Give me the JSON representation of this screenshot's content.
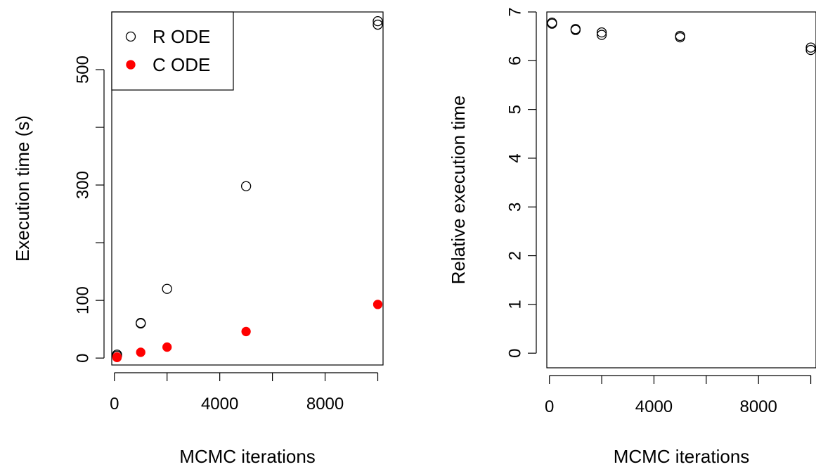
{
  "chart_data": [
    {
      "type": "scatter",
      "xlabel": "MCMC iterations",
      "ylabel": "Execution time (s)",
      "xlim": [
        -100,
        10200
      ],
      "ylim": [
        -12,
        600
      ],
      "x_ticks": [
        0,
        2000,
        4000,
        6000,
        8000,
        10000
      ],
      "x_tick_labels": [
        "0",
        "",
        "4000",
        "",
        "8000",
        ""
      ],
      "y_ticks": [
        0,
        100,
        200,
        300,
        400,
        500
      ],
      "y_tick_labels": [
        "0",
        "100",
        "",
        "300",
        "",
        "500"
      ],
      "grid": false,
      "legend": {
        "position": "top-left",
        "entries": [
          "R ODE",
          "C ODE"
        ]
      },
      "series": [
        {
          "name": "R ODE",
          "marker": "open-circle",
          "color": "#000000",
          "points": [
            [
              100,
              4
            ],
            [
              100,
              6
            ],
            [
              1000,
              61
            ],
            [
              1000,
              60
            ],
            [
              2000,
              120
            ],
            [
              5000,
              298
            ],
            [
              10000,
              578
            ],
            [
              10000,
              584
            ]
          ]
        },
        {
          "name": "C ODE",
          "marker": "filled-circle",
          "color": "#ff0000",
          "points": [
            [
              100,
              1
            ],
            [
              100,
              2
            ],
            [
              1000,
              10
            ],
            [
              2000,
              19
            ],
            [
              5000,
              46
            ],
            [
              10000,
              93
            ]
          ]
        }
      ]
    },
    {
      "type": "scatter",
      "xlabel": "MCMC iterations",
      "ylabel": "Relative execution time",
      "xlim": [
        -100,
        10200
      ],
      "ylim": [
        -0.3,
        7
      ],
      "x_ticks": [
        0,
        2000,
        4000,
        6000,
        8000,
        10000
      ],
      "x_tick_labels": [
        "0",
        "",
        "4000",
        "",
        "8000",
        ""
      ],
      "y_ticks": [
        0,
        1,
        2,
        3,
        4,
        5,
        6,
        7
      ],
      "y_tick_labels": [
        "0",
        "1",
        "2",
        "3",
        "4",
        "5",
        "6",
        "7"
      ],
      "grid": false,
      "series": [
        {
          "marker": "open-circle",
          "color": "#000000",
          "points": [
            [
              100,
              6.76
            ],
            [
              100,
              6.78
            ],
            [
              1000,
              6.63
            ],
            [
              1000,
              6.65
            ],
            [
              2000,
              6.53
            ],
            [
              2000,
              6.58
            ],
            [
              5000,
              6.48
            ],
            [
              5000,
              6.51
            ],
            [
              10000,
              6.22
            ],
            [
              10000,
              6.27
            ]
          ]
        }
      ]
    }
  ]
}
